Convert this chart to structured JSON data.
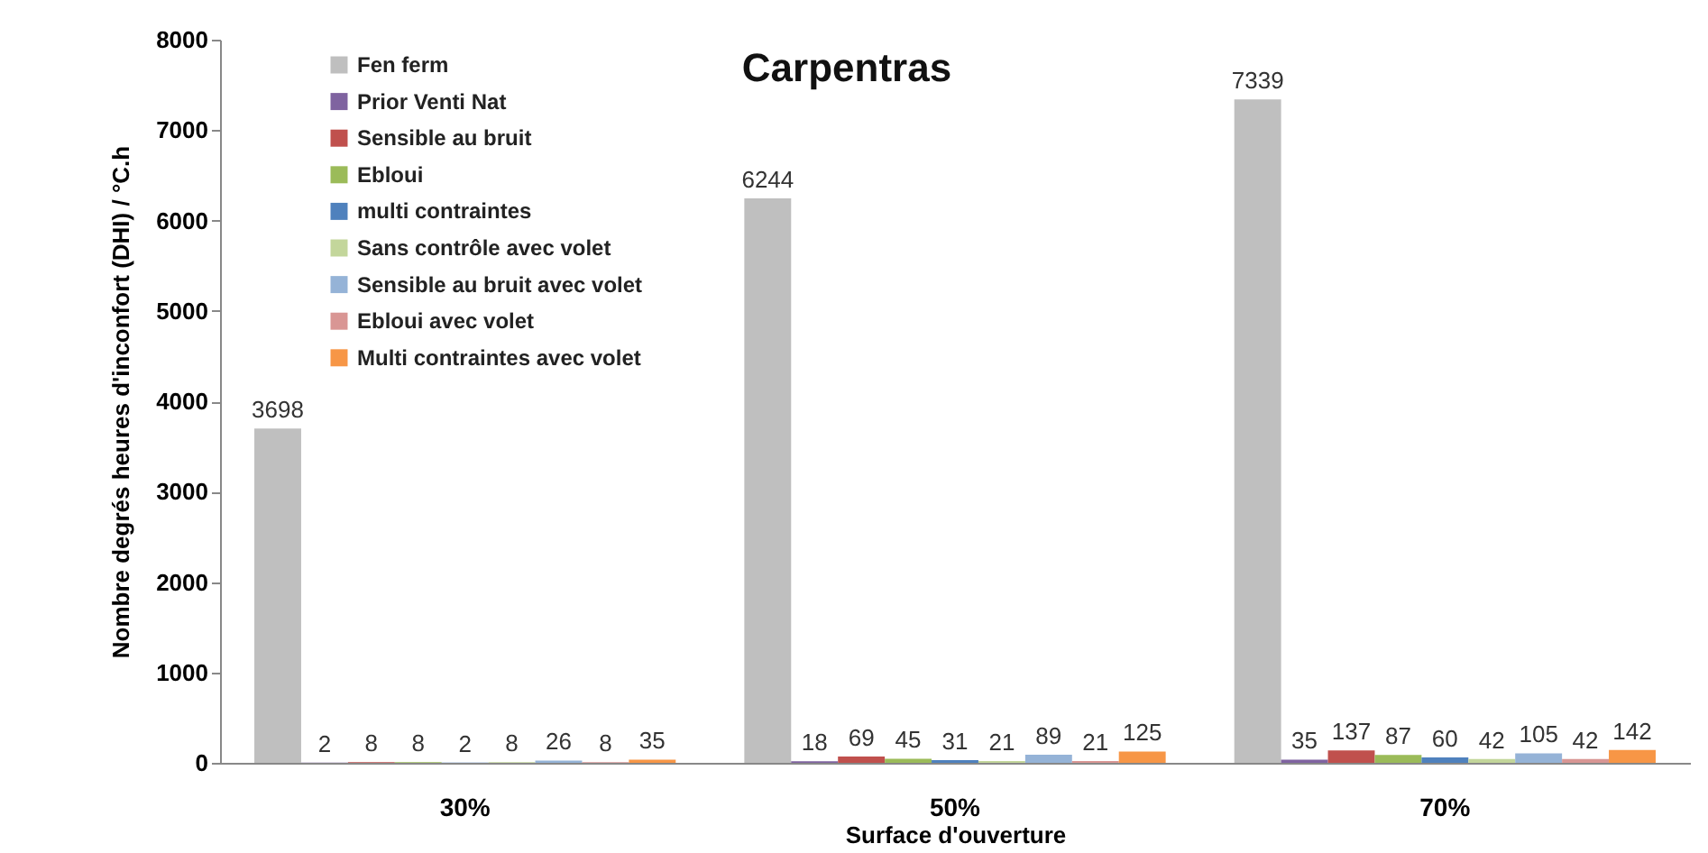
{
  "chart_data": {
    "type": "bar",
    "title": "Carpentras",
    "xlabel": "Surface d'ouverture",
    "ylabel": "Nombre degrés heures d'inconfort (DHI) / °C.h",
    "categories": [
      "30%",
      "50%",
      "70%"
    ],
    "series": [
      {
        "name": "Fen ferm",
        "color": "#bfbfbf",
        "values": [
          3698,
          6244,
          7339
        ]
      },
      {
        "name": "Prior Venti Nat",
        "color": "#7f63a0",
        "values": [
          2,
          18,
          35
        ]
      },
      {
        "name": "Sensible au bruit",
        "color": "#c0504d",
        "values": [
          8,
          69,
          137
        ]
      },
      {
        "name": "Ebloui",
        "color": "#9bbb59",
        "values": [
          8,
          45,
          87
        ]
      },
      {
        "name": "multi contraintes",
        "color": "#4f81bd",
        "values": [
          2,
          31,
          60
        ]
      },
      {
        "name": "Sans contrôle avec volet",
        "color": "#c3d69b",
        "values": [
          8,
          21,
          42
        ]
      },
      {
        "name": "Sensible au bruit avec volet",
        "color": "#95b3d7",
        "values": [
          26,
          89,
          105
        ]
      },
      {
        "name": "Ebloui avec volet",
        "color": "#d99694",
        "values": [
          8,
          21,
          42
        ]
      },
      {
        "name": "Multi contraintes avec volet",
        "color": "#f79646",
        "values": [
          35,
          125,
          142
        ]
      }
    ],
    "ylim": [
      0,
      8000
    ],
    "yticks": [
      0,
      1000,
      2000,
      3000,
      4000,
      5000,
      6000,
      7000,
      8000
    ],
    "data_labels": true,
    "legend": "top left"
  }
}
